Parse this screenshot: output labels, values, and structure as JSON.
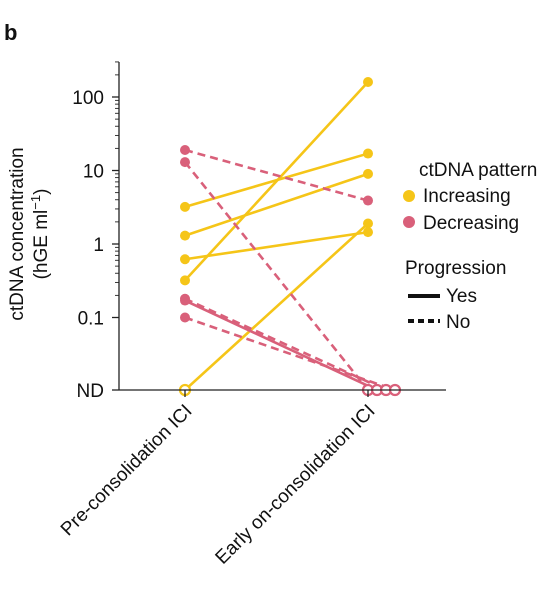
{
  "panel_label": "b",
  "chart_data": {
    "type": "line",
    "title": "",
    "ylabel_line1": "ctDNA concentration",
    "ylabel_line2": "(hGE ml",
    "ylabel_sup": "−1",
    "ylabel_close": ")",
    "yscale": "log",
    "ylim": [
      0.03,
      300
    ],
    "y_ticks": [
      {
        "label": "100",
        "value": 100
      },
      {
        "label": "10",
        "value": 10
      },
      {
        "label": "1",
        "value": 1
      },
      {
        "label": "0.1",
        "value": 0.1
      },
      {
        "label": "ND",
        "value": "ND"
      }
    ],
    "categories": [
      "Pre-consolidation ICI",
      "Early on-consolidation ICI"
    ],
    "colors": {
      "Increasing": "#F5C518",
      "Decreasing": "#D9607A",
      "axis": "#222222"
    },
    "series": [
      {
        "pattern": "Increasing",
        "progression": "Yes",
        "values": [
          "ND",
          1.9
        ]
      },
      {
        "pattern": "Increasing",
        "progression": "Yes",
        "values": [
          0.32,
          160
        ]
      },
      {
        "pattern": "Increasing",
        "progression": "Yes",
        "values": [
          3.2,
          17
        ]
      },
      {
        "pattern": "Increasing",
        "progression": "Yes",
        "values": [
          1.3,
          9
        ]
      },
      {
        "pattern": "Increasing",
        "progression": "Yes",
        "values": [
          0.62,
          1.45
        ]
      },
      {
        "pattern": "Decreasing",
        "progression": "No",
        "values": [
          19,
          3.9
        ]
      },
      {
        "pattern": "Decreasing",
        "progression": "No",
        "values": [
          13,
          "ND"
        ]
      },
      {
        "pattern": "Decreasing",
        "progression": "Yes",
        "values": [
          0.17,
          "ND"
        ]
      },
      {
        "pattern": "Decreasing",
        "progression": "No",
        "values": [
          0.18,
          "ND"
        ]
      },
      {
        "pattern": "Decreasing",
        "progression": "No",
        "values": [
          0.1,
          "ND"
        ]
      }
    ],
    "legend": {
      "position": "right",
      "pattern_title": "ctDNA pattern",
      "pattern_items": [
        "Increasing",
        "Decreasing"
      ],
      "progression_title": "Progression",
      "progression_items": [
        "Yes",
        "No"
      ]
    }
  }
}
